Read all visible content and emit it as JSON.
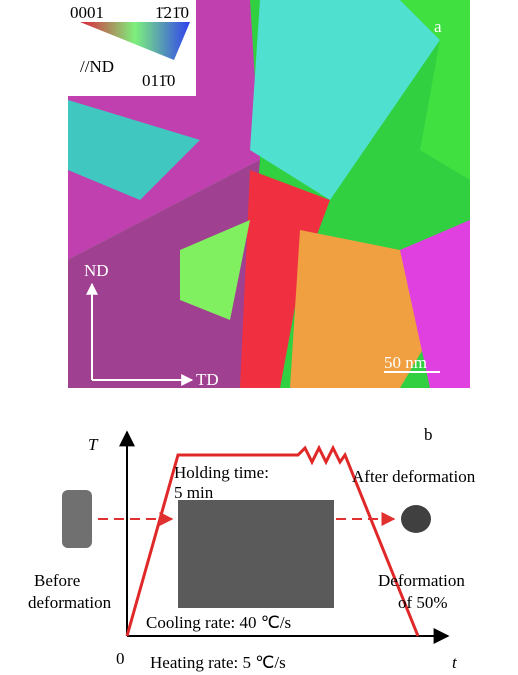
{
  "panel_a": {
    "legend": {
      "corner_top_left": "0001",
      "corner_top_right": "1̄21̄0",
      "corner_bottom": "011̄0",
      "reference": "//ND"
    },
    "label": "a",
    "axis_vertical": "ND",
    "axis_horizontal": "TD",
    "scale_bar": "50 nm"
  },
  "panel_b": {
    "label": "b",
    "y_axis": "T",
    "x_axis": "t",
    "origin": "0",
    "holding": [
      "Holding time:",
      "5 min"
    ],
    "after": "After deformation",
    "before": [
      "Before",
      "deformation"
    ],
    "deformation": [
      "Deformation",
      "of 50%"
    ],
    "cooling": "Cooling rate: 40 ℃/s",
    "heating": "Heating rate: 5 ℃/s"
  }
}
